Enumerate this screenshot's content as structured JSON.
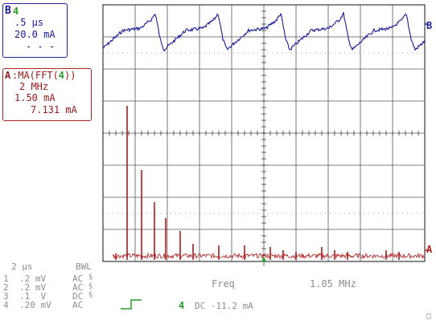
{
  "trace_b_box": {
    "channel": "B",
    "channel_source": "4",
    "timebase": ".5 µs",
    "scale": "20.0 mA",
    "dashes": "- - -"
  },
  "trace_a_box": {
    "channel": "A",
    "function_prefix": ":MA(FFT(",
    "function_source": "4",
    "function_suffix": "))",
    "freq_per_div": "2 MHz",
    "scale": "1.50 mA",
    "value": "7.131 mA"
  },
  "trace_labels": {
    "b": "B",
    "a": "A"
  },
  "bottom": {
    "timebase": "2 µs",
    "bwl": "BWL",
    "channels": [
      {
        "num": "1",
        "volts": ".2 mV",
        "coupling": "AC"
      },
      {
        "num": "2",
        "volts": ".2 mV",
        "coupling": "AC"
      },
      {
        "num": "3",
        "volts": ".1  V",
        "coupling": "DC"
      },
      {
        "num": "4",
        "volts": ".20 mV",
        "coupling": "AC"
      }
    ],
    "freq_label": "Freq",
    "freq_value": "1.05 MHz",
    "trigger_channel": "4",
    "trigger_level": "DC -11.2 mA",
    "corner_mark": "□"
  },
  "colors": {
    "blue": "#1a1a99",
    "red": "#b01818",
    "green": "#2a9a2a",
    "grid": "#3a3a3a",
    "gray": "#8d8d8d"
  },
  "chart_data": {
    "type": "line",
    "series": [
      {
        "name": "B",
        "color": "#1a1a99",
        "description_hidden": true
      },
      {
        "name": "A",
        "color": "#b01818"
      }
    ],
    "fft_peak_positions_div": [
      0.4,
      0.75,
      1.2,
      1.6,
      1.95,
      2.4,
      2.8,
      3.6,
      4.4,
      5.2,
      5.6,
      6.0,
      6.8,
      7.2,
      7.6,
      8.8,
      9.2
    ],
    "fft_peak_levels_div": [
      0.2,
      4.8,
      2.8,
      1.8,
      1.3,
      0.9,
      0.5,
      0.45,
      0.45,
      0.4,
      0.3,
      0.25,
      0.4,
      0.3,
      0.25,
      0.3,
      0.25
    ]
  }
}
